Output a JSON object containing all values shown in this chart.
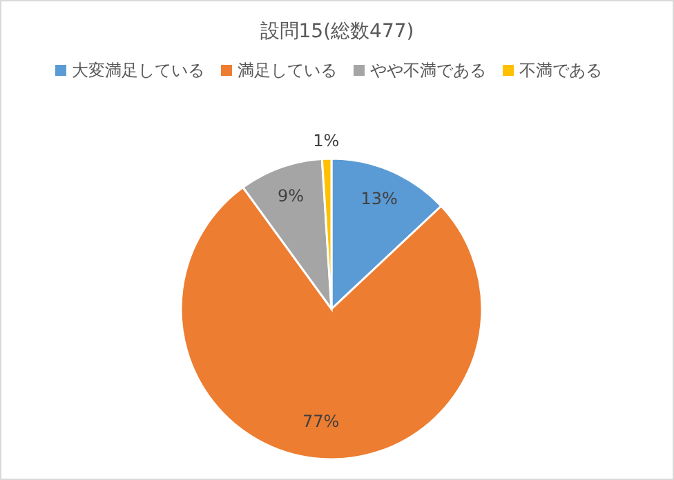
{
  "chart_data": {
    "type": "pie",
    "title": "設問15(総数477)",
    "categories": [
      "大変満足している",
      "満足している",
      "やや不満である",
      "不満である"
    ],
    "values": [
      13,
      77,
      9,
      1
    ],
    "colors": [
      "#5b9bd5",
      "#ed7d31",
      "#a5a5a5",
      "#ffc000"
    ],
    "value_labels": [
      "13%",
      "77%",
      "9%",
      "1%"
    ],
    "legend": "top"
  }
}
